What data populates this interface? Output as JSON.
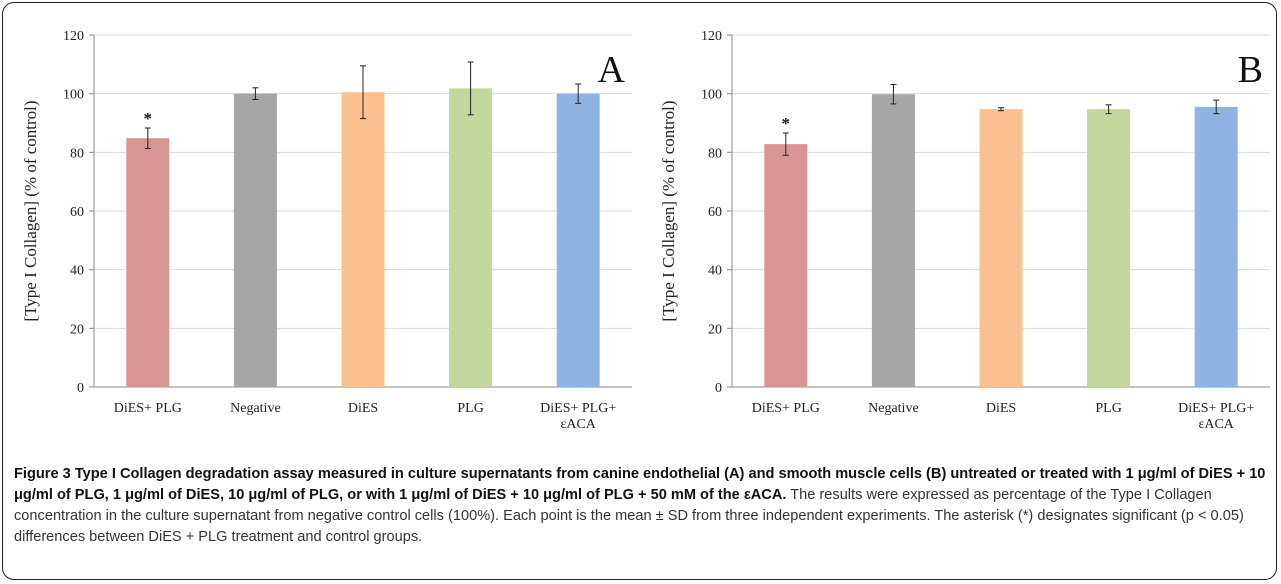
{
  "chart_data": [
    {
      "type": "bar",
      "panel_label": "A",
      "categories": [
        [
          "DiES+ PLG"
        ],
        [
          "Negative"
        ],
        [
          "DiES"
        ],
        [
          "PLG"
        ],
        [
          "DiES+ PLG+",
          "εACA"
        ]
      ],
      "values": [
        84.8,
        100.0,
        100.5,
        101.8,
        100.0
      ],
      "errors": [
        3.5,
        2.0,
        9.0,
        9.0,
        3.3
      ],
      "colors": [
        "#D99594",
        "#A6A6A6",
        "#FAC090",
        "#C3D69B",
        "#8DB4E2"
      ],
      "significance": [
        "*",
        "",
        "",
        "",
        ""
      ],
      "ylabel": "[Type I Collagen] (% of control)",
      "ylim": [
        0,
        120
      ],
      "yticks": [
        0,
        20,
        40,
        60,
        80,
        100,
        120
      ],
      "grid": true
    },
    {
      "type": "bar",
      "panel_label": "B",
      "categories": [
        [
          "DiES+ PLG"
        ],
        [
          "Negative"
        ],
        [
          "DiES"
        ],
        [
          "PLG"
        ],
        [
          "DiES+ PLG+",
          "εACA"
        ]
      ],
      "values": [
        82.8,
        99.8,
        94.7,
        94.7,
        95.5
      ],
      "errors": [
        3.8,
        3.3,
        0.5,
        1.5,
        2.3
      ],
      "colors": [
        "#D99594",
        "#A6A6A6",
        "#FAC090",
        "#C3D69B",
        "#8DB4E2"
      ],
      "significance": [
        "*",
        "",
        "",
        "",
        ""
      ],
      "ylabel": "[Type I Collagen] (% of control)",
      "ylim": [
        0,
        120
      ],
      "yticks": [
        0,
        20,
        40,
        60,
        80,
        100,
        120
      ],
      "grid": true
    }
  ],
  "caption": {
    "bold": "Figure 3 Type I Collagen degradation assay measured in culture supernatants from canine endothelial (A) and smooth muscle cells (B) untreated or treated with 1 μg/ml of DiES + 10 μg/ml of PLG, 1 μg/ml of DiES, 10 μg/ml of PLG, or with 1 μg/ml of DiES + 10 μg/ml of PLG + 50 mM of the εACA.",
    "text": " The results were expressed as percentage of the Type I Collagen concentration in the culture supernatant from negative control cells (100%). Each point is the mean ± SD from three independent experiments. The asterisk (*) designates significant (p < 0.05) differences between DiES + PLG treatment and control groups."
  }
}
